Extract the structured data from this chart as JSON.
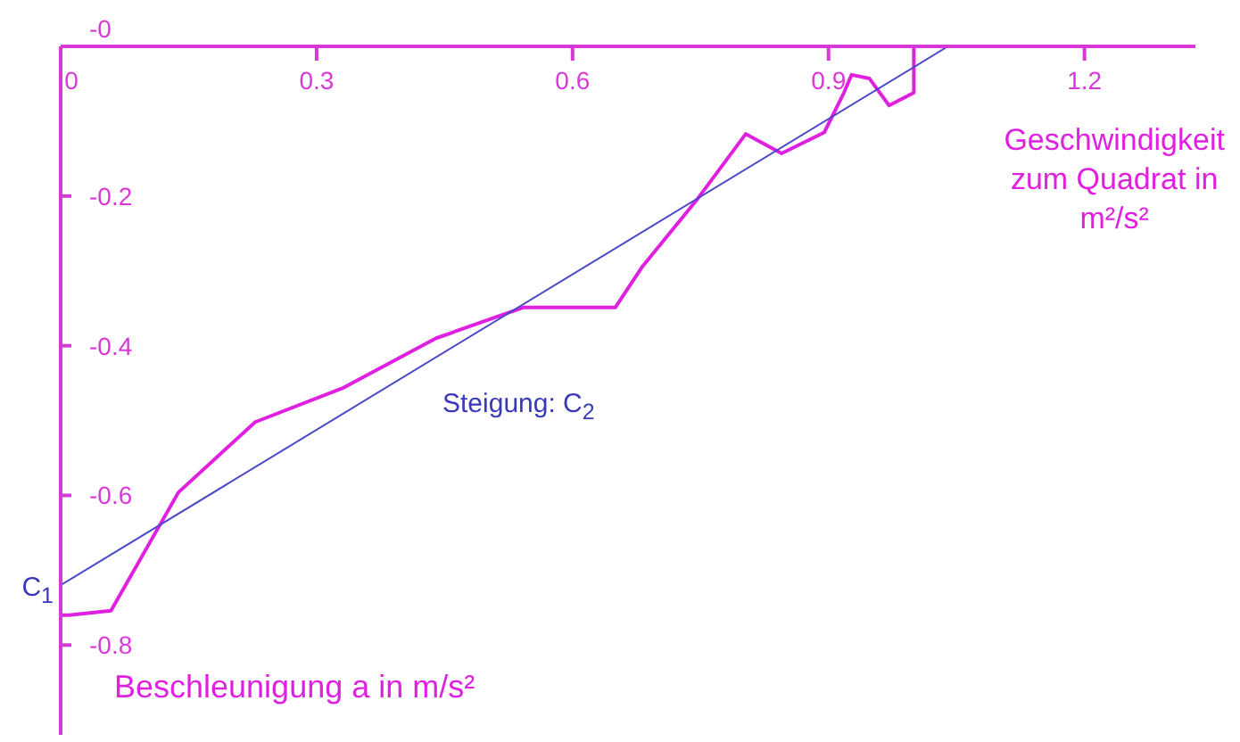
{
  "chart_data": {
    "type": "line",
    "xlabel": "Geschwindigkeit zum Quadrat in m²/s²",
    "ylabel": "Beschleunigung a in m/s²",
    "xlim": [
      0,
      1.33
    ],
    "ylim": [
      -0.92,
      0
    ],
    "xticks": [
      {
        "value": 0,
        "label": "0"
      },
      0.3,
      0.6,
      0.9,
      1.2
    ],
    "yticks": [
      {
        "value": 0,
        "label": "-0"
      },
      -0.2,
      -0.4,
      -0.6,
      -0.8
    ],
    "marker": "none",
    "line_style": "solid",
    "series": [
      {
        "color": "#e020e0",
        "x": [
          0,
          0,
          0.01,
          0.059,
          0.138,
          0.228,
          0.33,
          0.44,
          0.542,
          0.65,
          0.682,
          0.745,
          0.803,
          0.845,
          0.895,
          0.918,
          0.927,
          0.948,
          0.971,
          1.0,
          1.0
        ],
        "values": [
          -0.23,
          -0.76,
          -0.76,
          -0.754,
          -0.596,
          -0.502,
          -0.457,
          -0.39,
          -0.349,
          -0.349,
          -0.294,
          -0.206,
          -0.117,
          -0.143,
          -0.115,
          -0.062,
          -0.038,
          -0.043,
          -0.079,
          -0.062,
          0
        ]
      },
      {
        "type": "line",
        "color": "#4848c8",
        "x": [
          0,
          1.04
        ],
        "values": [
          -0.72,
          0
        ]
      }
    ],
    "annotations": [
      "Steigung: C$_{2}$",
      {
        "text": "C$_{1}$",
        "x": 0,
        "y": -0.72
      }
    ]
  }
}
